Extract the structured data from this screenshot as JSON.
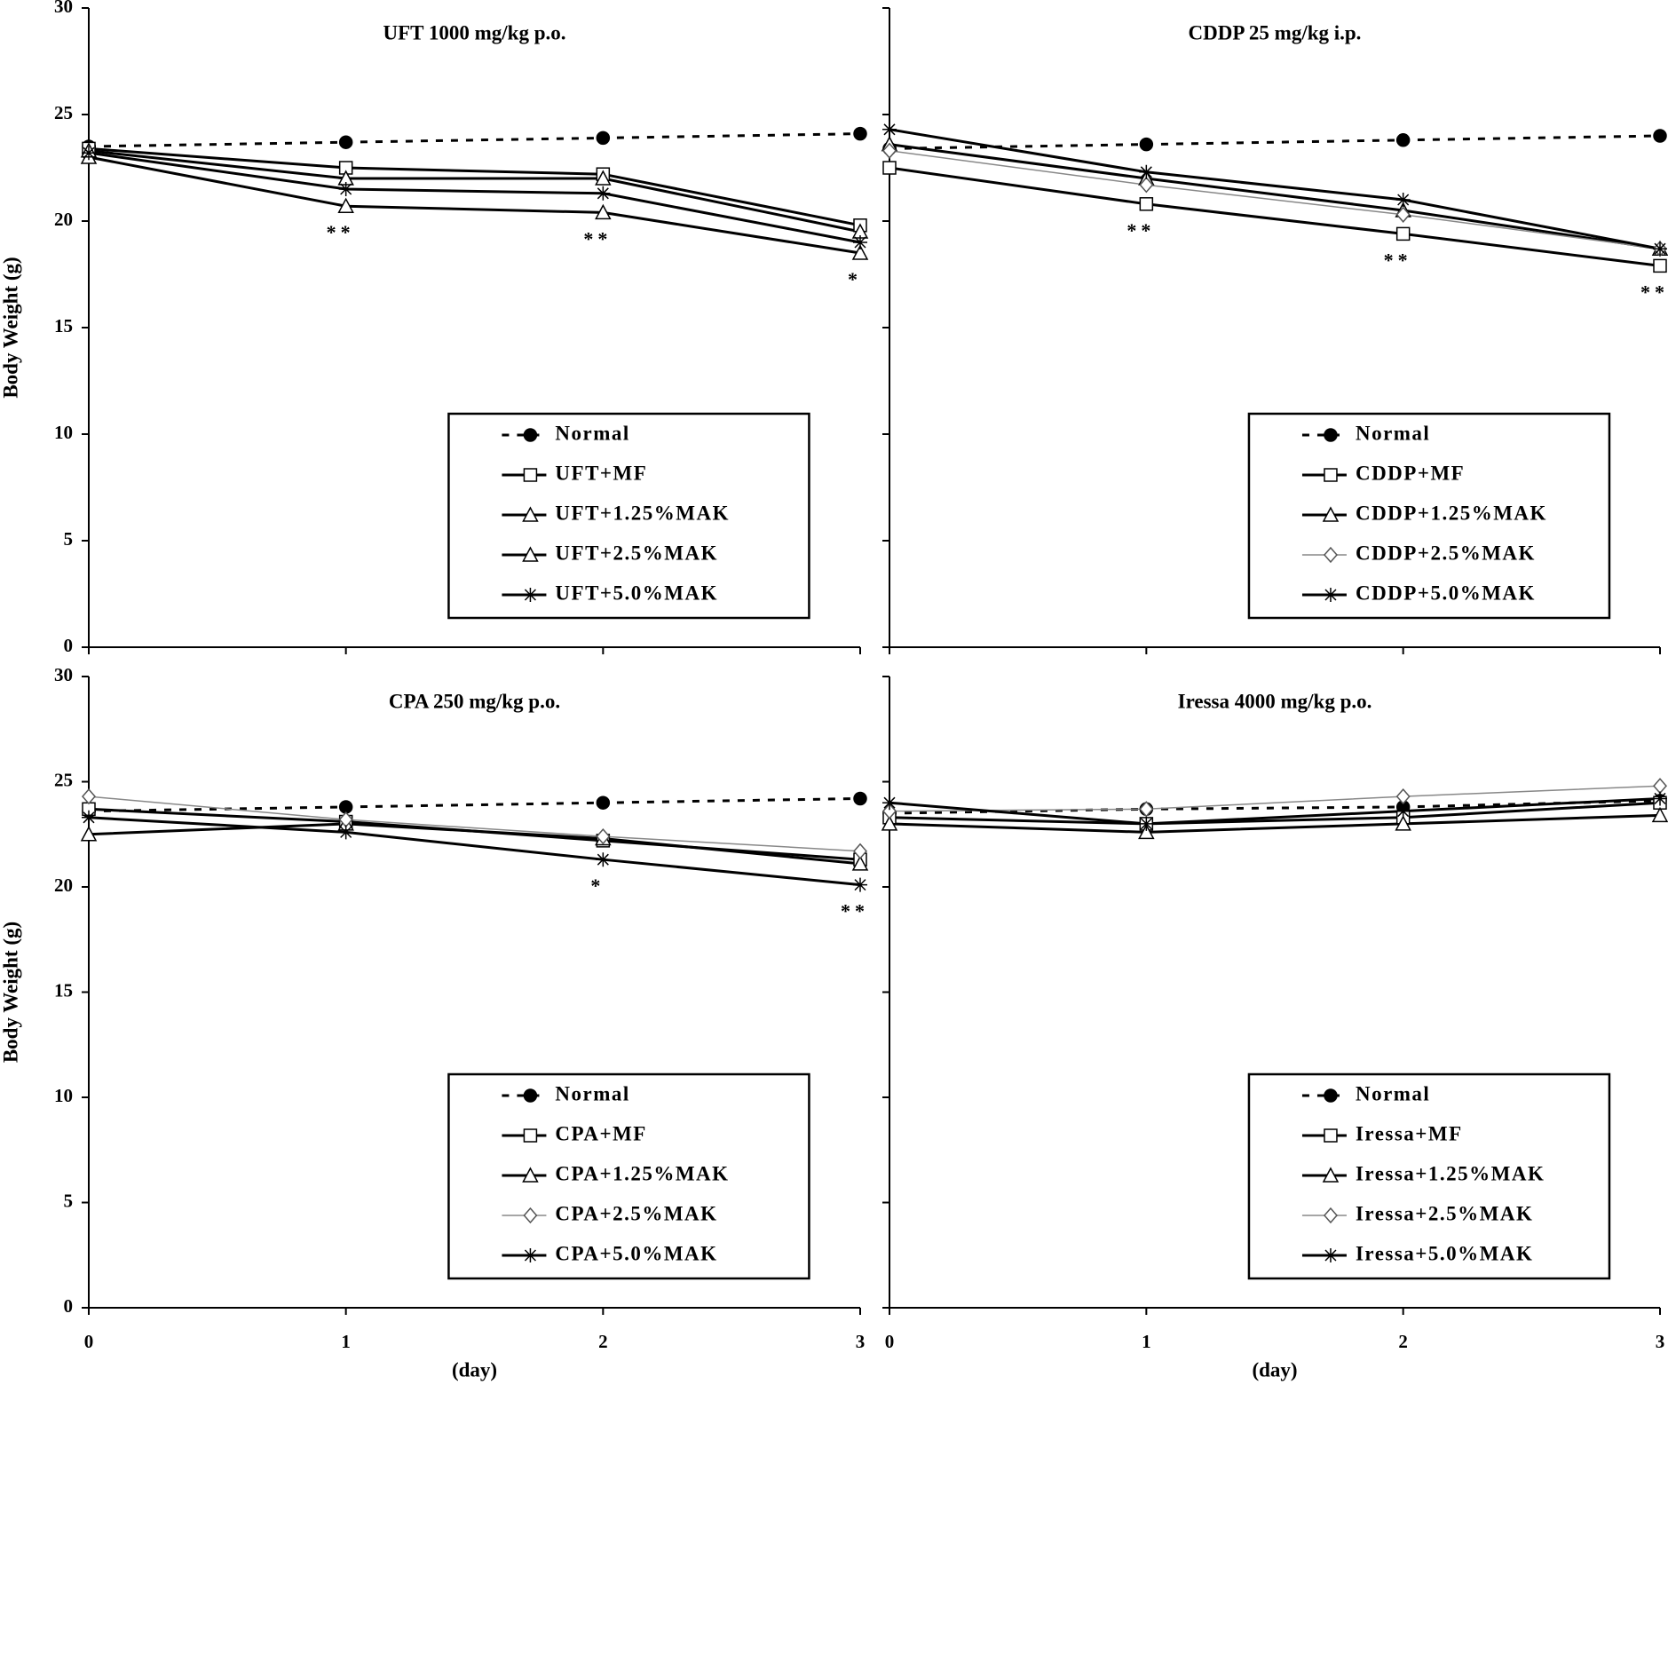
{
  "chart_data": [
    {
      "type": "line",
      "title": "UFT 1000 mg/kg p.o.",
      "ylabel": "Body Weight (g)",
      "x": [
        0,
        1,
        2,
        3
      ],
      "xlim": [
        0,
        3
      ],
      "xticks": [
        0,
        1,
        2,
        3
      ],
      "ylim": [
        0,
        30
      ],
      "yticks": [
        0,
        5,
        10,
        15,
        20,
        25,
        30
      ],
      "series": [
        {
          "name": "Normal",
          "color": "#000000",
          "dash": true,
          "marker": "circle",
          "values": [
            23.5,
            23.7,
            23.9,
            24.1
          ]
        },
        {
          "name": "UFT+MF",
          "color": "#000000",
          "dash": false,
          "marker": "square",
          "values": [
            23.4,
            22.5,
            22.2,
            19.8
          ]
        },
        {
          "name": "UFT+1.25%MAK",
          "color": "#000000",
          "dash": false,
          "marker": "triangle",
          "values": [
            23.0,
            20.7,
            20.4,
            18.5
          ]
        },
        {
          "name": "UFT+2.5%MAK",
          "color": "#000000",
          "dash": false,
          "marker": "triangle",
          "values": [
            23.3,
            22.0,
            22.0,
            19.5
          ]
        },
        {
          "name": "UFT+5.0%MAK",
          "color": "#000000",
          "dash": false,
          "marker": "star",
          "values": [
            23.2,
            21.5,
            21.3,
            19.0
          ]
        }
      ],
      "annotations": [
        {
          "text": "**",
          "x": 1
        },
        {
          "text": "**",
          "x": 2
        },
        {
          "text": "*",
          "x": 3
        }
      ]
    },
    {
      "type": "line",
      "title": "CDDP 25 mg/kg i.p.",
      "x": [
        0,
        1,
        2,
        3
      ],
      "xlim": [
        0,
        3
      ],
      "xticks": [
        0,
        1,
        2,
        3
      ],
      "ylim": [
        0,
        30
      ],
      "yticks": [
        0,
        5,
        10,
        15,
        20,
        25,
        30
      ],
      "series": [
        {
          "name": "Normal",
          "color": "#000000",
          "dash": true,
          "marker": "circle",
          "values": [
            23.4,
            23.6,
            23.8,
            24.0
          ]
        },
        {
          "name": "CDDP+MF",
          "color": "#000000",
          "dash": false,
          "marker": "square",
          "values": [
            22.5,
            20.8,
            19.4,
            17.9
          ]
        },
        {
          "name": "CDDP+1.25%MAK",
          "color": "#000000",
          "dash": false,
          "marker": "triangle",
          "values": [
            23.6,
            22.0,
            20.5,
            18.7
          ]
        },
        {
          "name": "CDDP+2.5%MAK",
          "color": "#888888",
          "dash": false,
          "marker": "diamond",
          "values": [
            23.3,
            21.7,
            20.3,
            18.7
          ]
        },
        {
          "name": "CDDP+5.0%MAK",
          "color": "#000000",
          "dash": false,
          "marker": "star",
          "values": [
            24.3,
            22.3,
            21.0,
            18.7
          ]
        }
      ],
      "annotations": [
        {
          "text": "**",
          "x": 1
        },
        {
          "text": "**",
          "x": 2
        },
        {
          "text": "**",
          "x": 3
        }
      ]
    },
    {
      "type": "line",
      "title": "CPA 250 mg/kg p.o.",
      "ylabel": "Body Weight (g)",
      "xlabel": "(day)",
      "x": [
        0,
        1,
        2,
        3
      ],
      "xlim": [
        0,
        3
      ],
      "xticks": [
        0,
        1,
        2,
        3
      ],
      "ylim": [
        0,
        30
      ],
      "yticks": [
        0,
        5,
        10,
        15,
        20,
        25,
        30
      ],
      "series": [
        {
          "name": "Normal",
          "color": "#000000",
          "dash": true,
          "marker": "circle",
          "values": [
            23.6,
            23.8,
            24.0,
            24.2
          ]
        },
        {
          "name": "CPA+MF",
          "color": "#000000",
          "dash": false,
          "marker": "square",
          "values": [
            23.7,
            23.1,
            22.2,
            21.3
          ]
        },
        {
          "name": "CPA+1.25%MAK",
          "color": "#000000",
          "dash": false,
          "marker": "triangle",
          "values": [
            22.5,
            23.0,
            22.3,
            21.1
          ]
        },
        {
          "name": "CPA+2.5%MAK",
          "color": "#888888",
          "dash": false,
          "marker": "diamond",
          "values": [
            24.3,
            23.2,
            22.4,
            21.7
          ]
        },
        {
          "name": "CPA+5.0%MAK",
          "color": "#000000",
          "dash": false,
          "marker": "star",
          "values": [
            23.3,
            22.6,
            21.3,
            20.1
          ]
        }
      ],
      "annotations": [
        {
          "text": "*",
          "x": 2
        },
        {
          "text": "**",
          "x": 3
        }
      ]
    },
    {
      "type": "line",
      "title": "Iressa 4000 mg/kg p.o.",
      "xlabel": "(day)",
      "x": [
        0,
        1,
        2,
        3
      ],
      "xlim": [
        0,
        3
      ],
      "xticks": [
        0,
        1,
        2,
        3
      ],
      "ylim": [
        0,
        30
      ],
      "yticks": [
        0,
        5,
        10,
        15,
        20,
        25,
        30
      ],
      "series": [
        {
          "name": "Normal",
          "color": "#000000",
          "dash": true,
          "marker": "circle",
          "values": [
            23.5,
            23.7,
            23.8,
            24.1
          ]
        },
        {
          "name": "Iressa+MF",
          "color": "#000000",
          "dash": false,
          "marker": "square",
          "values": [
            23.3,
            23.0,
            23.3,
            24.0
          ]
        },
        {
          "name": "Iressa+1.25%MAK",
          "color": "#000000",
          "dash": false,
          "marker": "triangle",
          "values": [
            23.0,
            22.6,
            23.0,
            23.4
          ]
        },
        {
          "name": "Iressa+2.5%MAK",
          "color": "#888888",
          "dash": false,
          "marker": "diamond",
          "values": [
            23.6,
            23.7,
            24.3,
            24.8
          ]
        },
        {
          "name": "Iressa+5.0%MAK",
          "color": "#000000",
          "dash": false,
          "marker": "star",
          "values": [
            24.0,
            23.0,
            23.6,
            24.2
          ]
        }
      ]
    }
  ]
}
